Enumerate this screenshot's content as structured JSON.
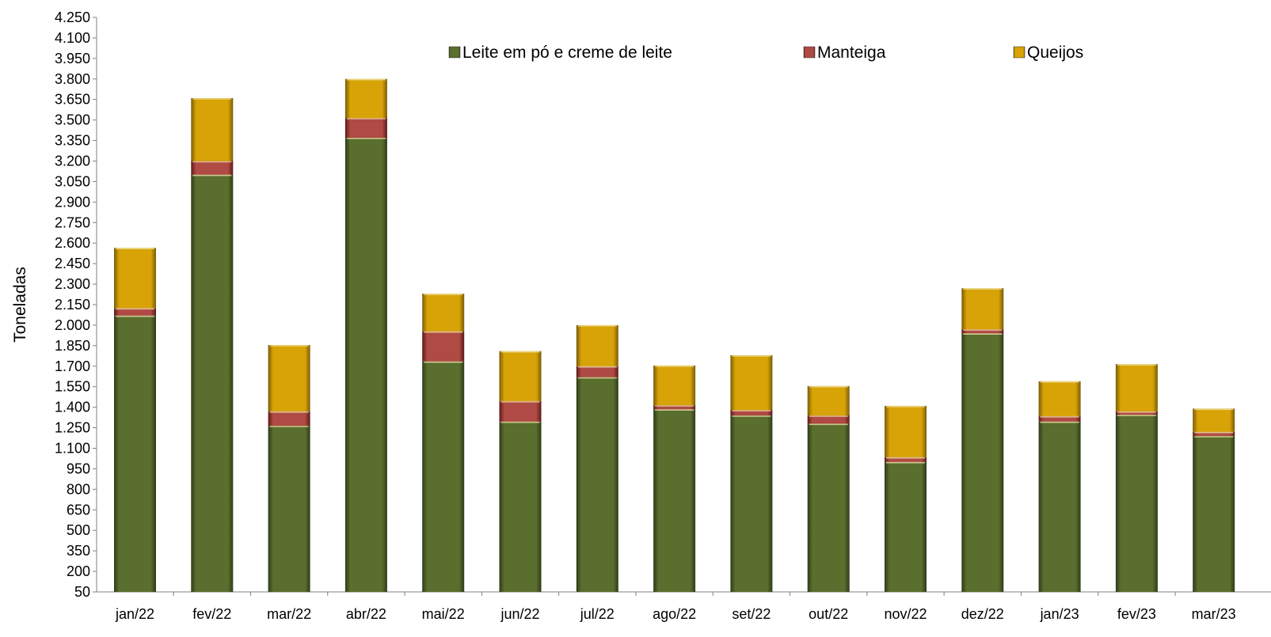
{
  "chart_data": {
    "type": "bar",
    "stacked": true,
    "title": "",
    "xlabel": "",
    "ylabel": "Toneladas",
    "ylim": [
      50,
      4250
    ],
    "ytick_step": 150,
    "yticks": [
      "4.250",
      "4.100",
      "3.950",
      "3.800",
      "3.650",
      "3.500",
      "3.350",
      "3.200",
      "3.050",
      "2.900",
      "2.750",
      "2.600",
      "2.450",
      "2.300",
      "2.150",
      "2.000",
      "1.850",
      "1.700",
      "1.550",
      "1.400",
      "1.250",
      "1.100",
      "950",
      "800",
      "650",
      "500",
      "350",
      "200",
      "50"
    ],
    "grid": false,
    "legend_position": "top",
    "categories": [
      "jan/22",
      "fev/22",
      "mar/22",
      "abr/22",
      "mai/22",
      "jun/22",
      "jul/22",
      "ago/22",
      "set/22",
      "out/22",
      "nov/22",
      "dez/22",
      "jan/23",
      "fev/23",
      "mar/23"
    ],
    "series": [
      {
        "name": "Leite em pó e creme de leite",
        "color": "#5a6e2e",
        "values": [
          2070,
          3100,
          1265,
          3370,
          1735,
          1295,
          1620,
          1385,
          1340,
          1280,
          1000,
          1940,
          1295,
          1345,
          1190
        ]
      },
      {
        "name": "Manteiga",
        "color": "#a13a36",
        "values": [
          55,
          100,
          105,
          145,
          220,
          150,
          80,
          30,
          40,
          60,
          35,
          30,
          40,
          25,
          30
        ]
      },
      {
        "name": "Queijos",
        "color": "#d7a307",
        "values": [
          440,
          460,
          485,
          285,
          275,
          365,
          300,
          290,
          400,
          215,
          375,
          300,
          255,
          345,
          170
        ]
      }
    ]
  }
}
